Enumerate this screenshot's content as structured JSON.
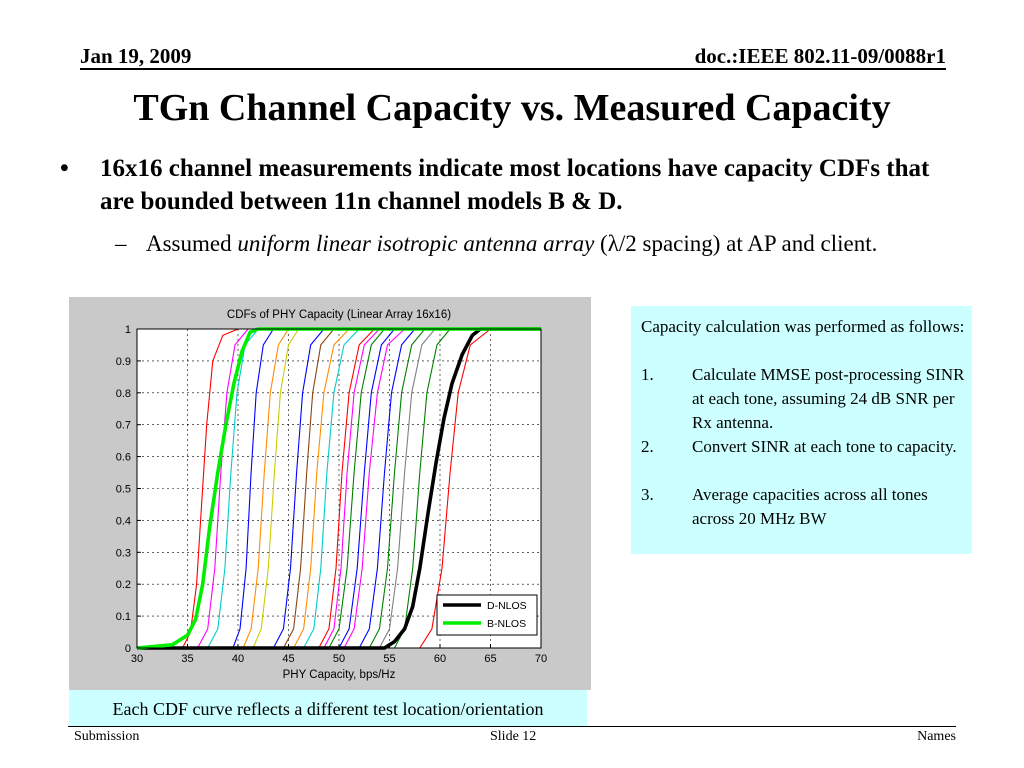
{
  "header": {
    "date": "Jan 19, 2009",
    "doc_id": "doc.:IEEE 802.11-09/0088r1"
  },
  "title": "TGn Channel Capacity vs. Measured Capacity",
  "bullets": {
    "main_mark": "•",
    "main": "16x16 channel measurements indicate most locations have capacity CDFs that are bounded between 11n channel models B & D.",
    "sub_mark": "–",
    "sub_before": "Assumed ",
    "sub_italic": "uniform linear isotropic antenna array",
    "sub_after": " (λ/2 spacing) at AP and client."
  },
  "figure_caption": "Each CDF curve reflects a different test location/orientation",
  "info_box": {
    "intro": "Capacity calculation was performed as follows:",
    "steps": [
      {
        "num": "1.",
        "text": "Calculate MMSE post-processing SINR at each tone, assuming 24 dB SNR per Rx antenna."
      },
      {
        "num": "2.",
        "text": "Convert SINR at each tone to capacity."
      },
      {
        "num": "3.",
        "text": "Average capacities across all tones across 20 MHz BW"
      }
    ]
  },
  "footer": {
    "left": "Submission",
    "center": "Slide 12",
    "right": "Names"
  },
  "chart_data": {
    "type": "line",
    "title": "CDFs of PHY Capacity (Linear Array 16x16)",
    "xlabel": "PHY Capacity, bps/Hz",
    "ylabel": "",
    "xlim": [
      30,
      70
    ],
    "ylim": [
      0,
      1
    ],
    "x_ticks": [
      "30",
      "35",
      "40",
      "45",
      "50",
      "55",
      "60",
      "65",
      "70"
    ],
    "y_ticks": [
      "0",
      "0.1",
      "0.2",
      "0.3",
      "0.4",
      "0.5",
      "0.6",
      "0.7",
      "0.8",
      "0.9",
      "1"
    ],
    "grid": true,
    "legend_position": "bottom-right",
    "series": [
      {
        "name": "D-NLOS",
        "color": "#000000",
        "bold": true,
        "x": [
          54.5,
          55.5,
          56.5,
          57.3,
          58.0,
          58.8,
          59.6,
          60.4,
          61.2,
          62.2,
          63.2,
          64.0
        ],
        "y": [
          0.0,
          0.02,
          0.06,
          0.13,
          0.25,
          0.42,
          0.58,
          0.72,
          0.83,
          0.92,
          0.98,
          1.0
        ]
      },
      {
        "name": "B-NLOS",
        "color": "#00ee00",
        "bold": true,
        "x": [
          30.0,
          33.5,
          35.0,
          35.8,
          36.5,
          37.2,
          38.0,
          38.8,
          39.6,
          40.4,
          41.2,
          42.0
        ],
        "y": [
          0.0,
          0.01,
          0.04,
          0.09,
          0.2,
          0.38,
          0.55,
          0.7,
          0.83,
          0.93,
          0.99,
          1.0
        ]
      },
      {
        "name": "",
        "color": "#ff0000",
        "x": [
          34.5,
          35.3,
          35.9,
          36.4,
          36.9,
          37.5,
          38.5,
          40.0
        ],
        "y": [
          0.0,
          0.05,
          0.2,
          0.45,
          0.7,
          0.9,
          0.98,
          1.0
        ]
      },
      {
        "name": "",
        "color": "#ff00ff",
        "x": [
          36.0,
          37.0,
          37.7,
          38.3,
          38.9,
          39.7,
          41.0
        ],
        "y": [
          0.0,
          0.06,
          0.25,
          0.55,
          0.8,
          0.95,
          1.0
        ]
      },
      {
        "name": "",
        "color": "#00cccc",
        "x": [
          37.0,
          38.0,
          38.7,
          39.3,
          39.9,
          40.7,
          42.0
        ],
        "y": [
          0.0,
          0.06,
          0.25,
          0.55,
          0.8,
          0.95,
          1.0
        ]
      },
      {
        "name": "",
        "color": "#0000ff",
        "x": [
          39.5,
          40.2,
          40.8,
          41.3,
          41.8,
          42.5,
          43.5
        ],
        "y": [
          0.0,
          0.06,
          0.25,
          0.55,
          0.8,
          0.95,
          1.0
        ]
      },
      {
        "name": "",
        "color": "#ff8c00",
        "x": [
          40.5,
          41.3,
          42.0,
          42.6,
          43.2,
          44.0,
          45.0
        ],
        "y": [
          0.0,
          0.06,
          0.25,
          0.55,
          0.8,
          0.95,
          1.0
        ]
      },
      {
        "name": "",
        "color": "#cccc00",
        "x": [
          41.5,
          42.3,
          43.0,
          43.6,
          44.2,
          45.0,
          46.0
        ],
        "y": [
          0.0,
          0.06,
          0.25,
          0.55,
          0.8,
          0.95,
          1.0
        ]
      },
      {
        "name": "",
        "color": "#0000ff",
        "x": [
          43.5,
          44.5,
          45.2,
          45.8,
          46.4,
          47.2,
          48.5
        ],
        "y": [
          0.0,
          0.06,
          0.25,
          0.55,
          0.8,
          0.95,
          1.0
        ]
      },
      {
        "name": "",
        "color": "#8b4513",
        "x": [
          44.5,
          45.5,
          46.2,
          46.8,
          47.4,
          48.2,
          49.5
        ],
        "y": [
          0.0,
          0.06,
          0.25,
          0.55,
          0.8,
          0.95,
          1.0
        ]
      },
      {
        "name": "",
        "color": "#ff8c00",
        "x": [
          45.5,
          46.5,
          47.2,
          47.8,
          48.5,
          49.5,
          51.0
        ],
        "y": [
          0.0,
          0.06,
          0.25,
          0.55,
          0.8,
          0.95,
          1.0
        ]
      },
      {
        "name": "",
        "color": "#00cccc",
        "x": [
          46.5,
          47.5,
          48.2,
          48.8,
          49.5,
          50.5,
          52.0
        ],
        "y": [
          0.0,
          0.06,
          0.25,
          0.55,
          0.8,
          0.95,
          1.0
        ]
      },
      {
        "name": "",
        "color": "#ff0000",
        "x": [
          48.0,
          49.0,
          49.7,
          50.3,
          51.0,
          52.0,
          53.5
        ],
        "y": [
          0.0,
          0.06,
          0.25,
          0.55,
          0.8,
          0.95,
          1.0
        ]
      },
      {
        "name": "",
        "color": "#ff00ff",
        "x": [
          48.5,
          49.5,
          50.2,
          50.8,
          51.5,
          52.5,
          54.0
        ],
        "y": [
          0.0,
          0.06,
          0.25,
          0.55,
          0.8,
          0.95,
          1.0
        ]
      },
      {
        "name": "",
        "color": "#008000",
        "x": [
          49.0,
          50.0,
          50.8,
          51.5,
          52.2,
          53.2,
          54.5
        ],
        "y": [
          0.0,
          0.06,
          0.25,
          0.55,
          0.8,
          0.95,
          1.0
        ]
      },
      {
        "name": "",
        "color": "#0000ff",
        "x": [
          50.0,
          51.0,
          51.8,
          52.5,
          53.2,
          54.2,
          55.5
        ],
        "y": [
          0.0,
          0.06,
          0.25,
          0.55,
          0.8,
          0.95,
          1.0
        ]
      },
      {
        "name": "",
        "color": "#ff00ff",
        "x": [
          50.5,
          51.5,
          52.3,
          53.0,
          53.8,
          54.8,
          56.5
        ],
        "y": [
          0.0,
          0.06,
          0.25,
          0.55,
          0.8,
          0.95,
          1.0
        ]
      },
      {
        "name": "",
        "color": "#0000ff",
        "x": [
          52.0,
          53.0,
          53.8,
          54.5,
          55.2,
          56.2,
          57.5
        ],
        "y": [
          0.0,
          0.06,
          0.25,
          0.55,
          0.8,
          0.95,
          1.0
        ]
      },
      {
        "name": "",
        "color": "#008000",
        "x": [
          53.0,
          54.0,
          54.8,
          55.5,
          56.2,
          57.2,
          58.5
        ],
        "y": [
          0.0,
          0.06,
          0.25,
          0.55,
          0.8,
          0.95,
          1.0
        ]
      },
      {
        "name": "",
        "color": "#808080",
        "x": [
          54.0,
          55.0,
          55.8,
          56.5,
          57.2,
          58.2,
          59.5
        ],
        "y": [
          0.0,
          0.06,
          0.25,
          0.55,
          0.8,
          0.95,
          1.0
        ]
      },
      {
        "name": "",
        "color": "#008000",
        "x": [
          55.5,
          56.5,
          57.3,
          58.0,
          58.7,
          59.7,
          61.0
        ],
        "y": [
          0.0,
          0.06,
          0.25,
          0.55,
          0.8,
          0.95,
          1.0
        ]
      },
      {
        "name": "",
        "color": "#ff0000",
        "x": [
          58.0,
          59.2,
          60.2,
          61.0,
          61.8,
          63.0,
          65.0
        ],
        "y": [
          0.0,
          0.06,
          0.25,
          0.55,
          0.8,
          0.95,
          1.0
        ]
      }
    ]
  }
}
